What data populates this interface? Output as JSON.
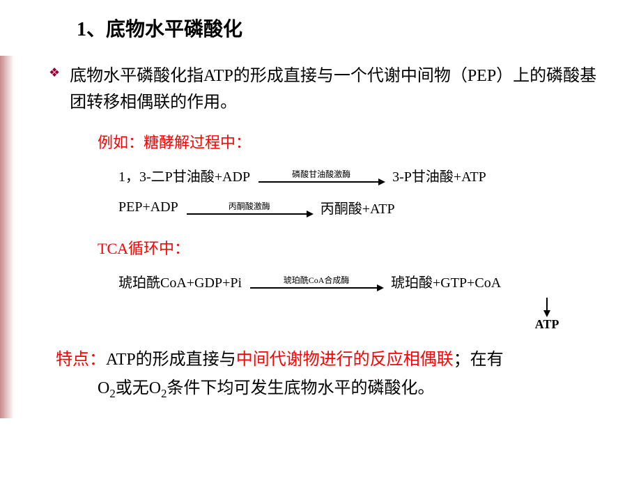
{
  "title": {
    "text": "1、底物水平磷酸化",
    "fontsize": 28,
    "color": "#000000",
    "weight": "bold"
  },
  "bullet": {
    "glyph": "❖",
    "color": "#990033"
  },
  "definition": {
    "text": "底物水平磷酸化指ATP的形成直接与一个代谢中间物（PEP）上的磷酸基团转移相偶联的作用。",
    "fontsize": 24,
    "color": "#000000"
  },
  "example_label": {
    "text": "例如：糖酵解过程中：",
    "fontsize": 22,
    "color": "#ff0000"
  },
  "reactions": {
    "fontsize": 20,
    "color": "#000000",
    "r1": {
      "left": "1，3-二P甘油酸+ADP",
      "enzyme": "磷酸甘油酸激酶",
      "enzyme_fontsize": 12,
      "arrow_width": 180,
      "right": "3-P甘油酸+ATP"
    },
    "r2": {
      "left": "PEP+ADP",
      "enzyme": "丙酮酸激酶",
      "enzyme_fontsize": 12,
      "arrow_width": 180,
      "right": "丙酮酸+ATP"
    },
    "r3": {
      "left": "琥珀酰CoA+GDP+Pi",
      "enzyme": "琥珀酰CoA合成酶",
      "enzyme_fontsize": 12,
      "arrow_width": 190,
      "right": "琥珀酸+GTP+CoA"
    }
  },
  "tca_label": {
    "text": "TCA循环中：",
    "fontsize": 22,
    "color": "#ff0000"
  },
  "atp_product": {
    "text": "ATP",
    "fontsize": 18,
    "color": "#000000",
    "weight": "bold"
  },
  "feature": {
    "label": "特点：",
    "label_color": "#ff0000",
    "part1": "ATP的形成直接与",
    "part2": "中间代谢物进行的反应相偶联",
    "part3": "；在有",
    "indent": "          ",
    "part4_pre": "O",
    "part4_sub": "2",
    "part5": "或无O",
    "part5_sub": "2",
    "part6": "条件下均可发生底物水平的磷酸化。",
    "red_color": "#ff0000",
    "black_color": "#000000",
    "fontsize": 24
  },
  "style": {
    "background": "#ffffff",
    "stripe_gradient_from": "#c88a8a",
    "stripe_gradient_to": "#ffffff"
  }
}
